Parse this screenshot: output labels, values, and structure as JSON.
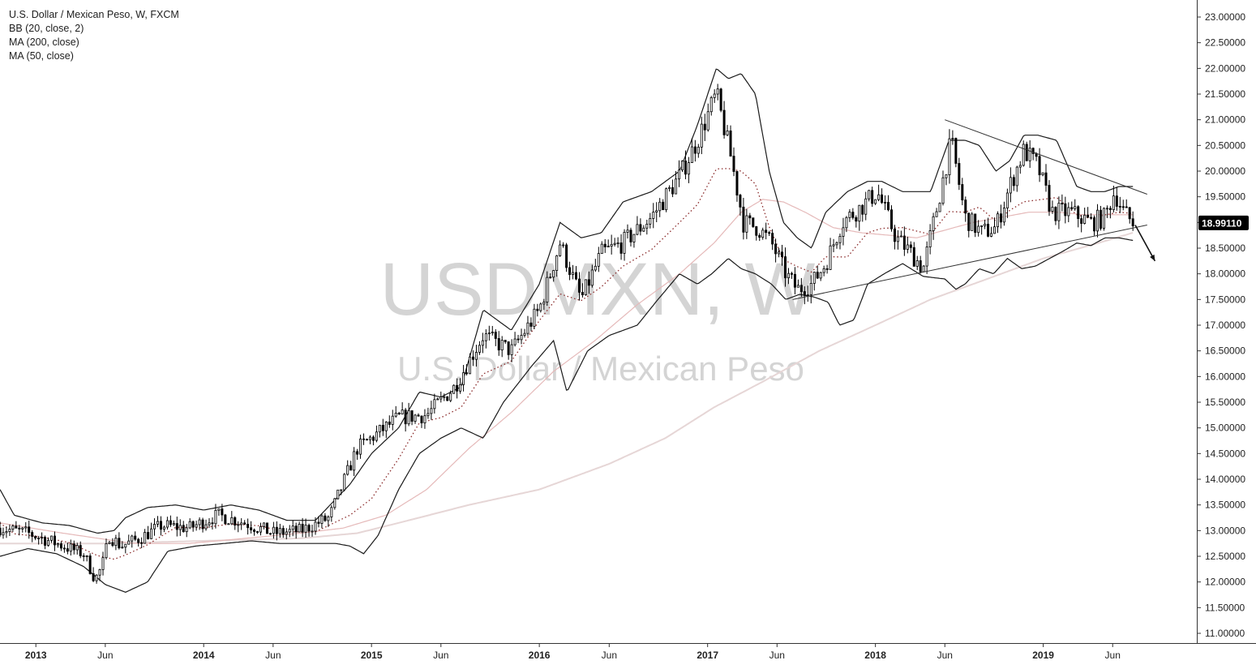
{
  "header": {
    "title": "U.S. Dollar / Mexican Peso, W, FXCM",
    "indicators": [
      "BB (20, close, 2)",
      "MA (200, close)",
      "MA (50, close)"
    ]
  },
  "watermark": {
    "symbol": "USDMXN, W",
    "name": "U.S. Dollar / Mexican Peso"
  },
  "price_label": "18.99110",
  "colors": {
    "candle": "#000000",
    "bollinger": "#1a1a1a",
    "ma50": "#e5b9b9",
    "ma200": "#e6d6d6",
    "price_label_bg": "#000000",
    "watermark": "#d4d4d4"
  },
  "chart_data": {
    "type": "line",
    "subtype": "candlestick",
    "x_ticks": [
      {
        "label": "2013",
        "date": "2013-01-01",
        "year": true
      },
      {
        "label": "Jun",
        "date": "2013-06-01",
        "year": false
      },
      {
        "label": "2014",
        "date": "2014-01-01",
        "year": true
      },
      {
        "label": "Jun",
        "date": "2014-06-01",
        "year": false
      },
      {
        "label": "2015",
        "date": "2015-01-01",
        "year": true
      },
      {
        "label": "Jun",
        "date": "2015-06-01",
        "year": false
      },
      {
        "label": "2016",
        "date": "2016-01-01",
        "year": true
      },
      {
        "label": "Jun",
        "date": "2016-06-01",
        "year": false
      },
      {
        "label": "2017",
        "date": "2017-01-01",
        "year": true
      },
      {
        "label": "Jun",
        "date": "2017-06-01",
        "year": false
      },
      {
        "label": "2018",
        "date": "2018-01-01",
        "year": true
      },
      {
        "label": "Jun",
        "date": "2018-06-01",
        "year": false
      },
      {
        "label": "2019",
        "date": "2019-01-01",
        "year": true
      },
      {
        "label": "Jun",
        "date": "2019-06-01",
        "year": false
      }
    ],
    "y_ticks": [
      "23.00000",
      "22.50000",
      "22.00000",
      "21.50000",
      "21.00000",
      "20.50000",
      "20.00000",
      "19.50000",
      "19.00000",
      "18.50000",
      "18.00000",
      "17.50000",
      "17.00000",
      "16.50000",
      "16.00000",
      "15.50000",
      "15.00000",
      "14.50000",
      "14.00000",
      "13.50000",
      "13.00000",
      "12.50000",
      "12.00000",
      "11.50000",
      "11.00000"
    ],
    "ylim": [
      11.0,
      23.0
    ],
    "xlim": [
      "2012-10-15",
      "2019-12-01"
    ],
    "close_series": [
      [
        "2012-10-15",
        13.05
      ],
      [
        "2012-12-15",
        12.95
      ],
      [
        "2013-02-15",
        12.75
      ],
      [
        "2013-04-15",
        12.55
      ],
      [
        "2013-05-10",
        12.05
      ],
      [
        "2013-05-25",
        12.3
      ],
      [
        "2013-06-10",
        12.9
      ],
      [
        "2013-07-05",
        12.7
      ],
      [
        "2013-08-15",
        12.85
      ],
      [
        "2013-10-01",
        13.1
      ],
      [
        "2013-12-01",
        13.05
      ],
      [
        "2014-02-01",
        13.3
      ],
      [
        "2014-04-01",
        13.15
      ],
      [
        "2014-06-01",
        12.95
      ],
      [
        "2014-08-01",
        13.0
      ],
      [
        "2014-10-01",
        13.25
      ],
      [
        "2014-12-01",
        14.6
      ],
      [
        "2015-03-01",
        15.2
      ],
      [
        "2015-05-01",
        15.25
      ],
      [
        "2015-07-01",
        15.8
      ],
      [
        "2015-09-01",
        16.8
      ],
      [
        "2015-11-01",
        16.5
      ],
      [
        "2016-01-01",
        17.3
      ],
      [
        "2016-02-15",
        18.6
      ],
      [
        "2016-04-01",
        17.5
      ],
      [
        "2016-05-15",
        18.4
      ],
      [
        "2016-07-01",
        18.6
      ],
      [
        "2016-09-01",
        19.1
      ],
      [
        "2016-11-01",
        19.9
      ],
      [
        "2016-12-10",
        20.6
      ],
      [
        "2017-01-20",
        21.5
      ],
      [
        "2017-02-20",
        20.3
      ],
      [
        "2017-03-20",
        19.0
      ],
      [
        "2017-04-20",
        18.9
      ],
      [
        "2017-05-20",
        18.6
      ],
      [
        "2017-06-20",
        18.0
      ],
      [
        "2017-07-15",
        17.7
      ],
      [
        "2017-08-15",
        17.8
      ],
      [
        "2017-09-15",
        18.2
      ],
      [
        "2017-10-20",
        19.0
      ],
      [
        "2017-12-01",
        19.3
      ],
      [
        "2018-01-05",
        19.6
      ],
      [
        "2018-02-15",
        18.7
      ],
      [
        "2018-03-20",
        18.4
      ],
      [
        "2018-04-15",
        18.1
      ],
      [
        "2018-05-20",
        19.5
      ],
      [
        "2018-06-15",
        20.6
      ],
      [
        "2018-07-15",
        19.1
      ],
      [
        "2018-08-20",
        18.8
      ],
      [
        "2018-09-20",
        18.9
      ],
      [
        "2018-10-20",
        19.7
      ],
      [
        "2018-11-20",
        20.4
      ],
      [
        "2018-12-20",
        20.1
      ],
      [
        "2019-01-20",
        19.2
      ],
      [
        "2019-03-01",
        19.2
      ],
      [
        "2019-04-15",
        19.0
      ],
      [
        "2019-05-15",
        19.1
      ],
      [
        "2019-06-05",
        19.6
      ],
      [
        "2019-06-25",
        19.2
      ],
      [
        "2019-07-15",
        18.99
      ]
    ],
    "bollinger_upper": [
      [
        "2012-10-15",
        13.8
      ],
      [
        "2012-11-15",
        13.3
      ],
      [
        "2013-01-15",
        13.15
      ],
      [
        "2013-03-15",
        13.1
      ],
      [
        "2013-05-15",
        12.95
      ],
      [
        "2013-06-20",
        13.0
      ],
      [
        "2013-07-15",
        13.25
      ],
      [
        "2013-09-01",
        13.45
      ],
      [
        "2013-11-01",
        13.5
      ],
      [
        "2014-01-01",
        13.4
      ],
      [
        "2014-03-01",
        13.5
      ],
      [
        "2014-05-01",
        13.4
      ],
      [
        "2014-07-01",
        13.2
      ],
      [
        "2014-09-01",
        13.2
      ],
      [
        "2014-11-15",
        13.9
      ],
      [
        "2015-01-01",
        14.5
      ],
      [
        "2015-03-01",
        15.0
      ],
      [
        "2015-04-15",
        15.7
      ],
      [
        "2015-06-01",
        15.6
      ],
      [
        "2015-07-15",
        15.8
      ],
      [
        "2015-09-01",
        17.3
      ],
      [
        "2015-11-01",
        16.9
      ],
      [
        "2016-01-01",
        17.8
      ],
      [
        "2016-02-15",
        19.0
      ],
      [
        "2016-04-01",
        18.7
      ],
      [
        "2016-05-15",
        18.8
      ],
      [
        "2016-07-01",
        19.4
      ],
      [
        "2016-09-01",
        19.6
      ],
      [
        "2016-11-01",
        20.0
      ],
      [
        "2016-12-10",
        20.9
      ],
      [
        "2017-01-20",
        22.0
      ],
      [
        "2017-02-15",
        21.8
      ],
      [
        "2017-03-15",
        21.9
      ],
      [
        "2017-04-15",
        21.5
      ],
      [
        "2017-05-15",
        20.0
      ],
      [
        "2017-06-15",
        19.0
      ],
      [
        "2017-07-15",
        18.7
      ],
      [
        "2017-08-15",
        18.5
      ],
      [
        "2017-09-15",
        19.2
      ],
      [
        "2017-11-01",
        19.6
      ],
      [
        "2017-12-15",
        19.8
      ],
      [
        "2018-01-15",
        19.8
      ],
      [
        "2018-03-01",
        19.6
      ],
      [
        "2018-05-01",
        19.6
      ],
      [
        "2018-06-10",
        20.6
      ],
      [
        "2018-07-15",
        20.6
      ],
      [
        "2018-08-15",
        20.5
      ],
      [
        "2018-09-20",
        20.0
      ],
      [
        "2018-10-20",
        20.2
      ],
      [
        "2018-11-20",
        20.7
      ],
      [
        "2018-12-20",
        20.7
      ],
      [
        "2019-01-30",
        20.6
      ],
      [
        "2019-03-15",
        19.7
      ],
      [
        "2019-04-15",
        19.6
      ],
      [
        "2019-05-15",
        19.6
      ],
      [
        "2019-06-15",
        19.7
      ],
      [
        "2019-07-15",
        19.7
      ]
    ],
    "bollinger_lower": [
      [
        "2012-10-15",
        12.5
      ],
      [
        "2012-12-15",
        12.65
      ],
      [
        "2013-02-15",
        12.55
      ],
      [
        "2013-04-15",
        12.3
      ],
      [
        "2013-06-01",
        11.95
      ],
      [
        "2013-07-15",
        11.8
      ],
      [
        "2013-09-01",
        12.0
      ],
      [
        "2013-10-15",
        12.6
      ],
      [
        "2013-12-15",
        12.7
      ],
      [
        "2014-02-15",
        12.75
      ],
      [
        "2014-04-15",
        12.8
      ],
      [
        "2014-06-15",
        12.75
      ],
      [
        "2014-08-15",
        12.75
      ],
      [
        "2014-10-15",
        12.75
      ],
      [
        "2014-11-15",
        12.7
      ],
      [
        "2014-12-15",
        12.55
      ],
      [
        "2015-01-15",
        12.9
      ],
      [
        "2015-03-01",
        13.8
      ],
      [
        "2015-04-15",
        14.5
      ],
      [
        "2015-06-01",
        14.8
      ],
      [
        "2015-07-15",
        15.0
      ],
      [
        "2015-09-01",
        14.8
      ],
      [
        "2015-10-15",
        15.5
      ],
      [
        "2015-12-15",
        16.2
      ],
      [
        "2016-02-01",
        16.7
      ],
      [
        "2016-03-01",
        15.7
      ],
      [
        "2016-04-15",
        16.5
      ],
      [
        "2016-06-01",
        16.8
      ],
      [
        "2016-08-01",
        17.0
      ],
      [
        "2016-09-15",
        17.5
      ],
      [
        "2016-11-01",
        18.0
      ],
      [
        "2016-12-10",
        17.8
      ],
      [
        "2017-01-10",
        18.0
      ],
      [
        "2017-02-15",
        18.3
      ],
      [
        "2017-03-15",
        18.1
      ],
      [
        "2017-04-15",
        18.0
      ],
      [
        "2017-05-20",
        17.8
      ],
      [
        "2017-06-20",
        17.5
      ],
      [
        "2017-07-20",
        17.6
      ],
      [
        "2017-08-20",
        17.55
      ],
      [
        "2017-09-20",
        17.45
      ],
      [
        "2017-10-15",
        17.0
      ],
      [
        "2017-11-15",
        17.1
      ],
      [
        "2017-12-15",
        17.8
      ],
      [
        "2018-01-20",
        18.0
      ],
      [
        "2018-03-01",
        18.2
      ],
      [
        "2018-04-15",
        17.95
      ],
      [
        "2018-06-01",
        17.9
      ],
      [
        "2018-06-25",
        17.7
      ],
      [
        "2018-07-15",
        17.8
      ],
      [
        "2018-08-15",
        18.1
      ],
      [
        "2018-09-15",
        18.0
      ],
      [
        "2018-10-15",
        18.3
      ],
      [
        "2018-11-15",
        18.1
      ],
      [
        "2018-12-15",
        18.15
      ],
      [
        "2019-01-15",
        18.3
      ],
      [
        "2019-02-15",
        18.45
      ],
      [
        "2019-03-15",
        18.6
      ],
      [
        "2019-04-15",
        18.55
      ],
      [
        "2019-05-15",
        18.7
      ],
      [
        "2019-06-15",
        18.7
      ],
      [
        "2019-07-15",
        18.65
      ]
    ],
    "ma50": [
      [
        "2012-10-15",
        13.15
      ],
      [
        "2013-03-01",
        12.95
      ],
      [
        "2013-08-01",
        12.75
      ],
      [
        "2013-12-01",
        12.75
      ],
      [
        "2014-04-01",
        12.85
      ],
      [
        "2014-08-01",
        12.95
      ],
      [
        "2014-11-01",
        13.05
      ],
      [
        "2015-02-01",
        13.3
      ],
      [
        "2015-05-01",
        13.8
      ],
      [
        "2015-08-01",
        14.6
      ],
      [
        "2015-11-01",
        15.3
      ],
      [
        "2016-02-01",
        16.1
      ],
      [
        "2016-05-01",
        16.7
      ],
      [
        "2016-08-01",
        17.4
      ],
      [
        "2016-11-01",
        18.0
      ],
      [
        "2017-01-15",
        18.6
      ],
      [
        "2017-03-15",
        19.2
      ],
      [
        "2017-05-01",
        19.45
      ],
      [
        "2017-06-15",
        19.4
      ],
      [
        "2017-08-01",
        19.2
      ],
      [
        "2017-10-01",
        18.9
      ],
      [
        "2017-12-01",
        18.8
      ],
      [
        "2018-02-01",
        18.75
      ],
      [
        "2018-04-01",
        18.7
      ],
      [
        "2018-06-01",
        18.85
      ],
      [
        "2018-08-01",
        19.0
      ],
      [
        "2018-10-01",
        19.1
      ],
      [
        "2018-12-01",
        19.2
      ],
      [
        "2019-02-01",
        19.2
      ],
      [
        "2019-04-01",
        19.15
      ],
      [
        "2019-07-15",
        19.15
      ]
    ],
    "ma200": [
      [
        "2012-10-15",
        12.75
      ],
      [
        "2013-06-01",
        12.75
      ],
      [
        "2014-01-01",
        12.8
      ],
      [
        "2014-08-01",
        12.85
      ],
      [
        "2014-12-01",
        12.95
      ],
      [
        "2015-03-01",
        13.15
      ],
      [
        "2015-08-01",
        13.5
      ],
      [
        "2016-01-01",
        13.8
      ],
      [
        "2016-06-01",
        14.3
      ],
      [
        "2016-10-01",
        14.8
      ],
      [
        "2017-01-15",
        15.4
      ],
      [
        "2017-05-01",
        15.9
      ],
      [
        "2017-09-01",
        16.5
      ],
      [
        "2018-01-01",
        17.0
      ],
      [
        "2018-05-01",
        17.5
      ],
      [
        "2018-09-01",
        17.9
      ],
      [
        "2019-01-01",
        18.3
      ],
      [
        "2019-05-01",
        18.6
      ],
      [
        "2019-07-15",
        18.8
      ]
    ],
    "trendlines": [
      {
        "from": [
          "2018-06-01",
          21.0
        ],
        "to": [
          "2019-08-15",
          19.55
        ]
      },
      {
        "from": [
          "2017-07-05",
          17.5
        ],
        "to": [
          "2019-08-15",
          18.95
        ]
      }
    ],
    "arrow": {
      "from": [
        "2019-07-20",
        18.95
      ],
      "to": [
        "2019-09-01",
        18.25
      ]
    },
    "last_price": 18.9911
  }
}
